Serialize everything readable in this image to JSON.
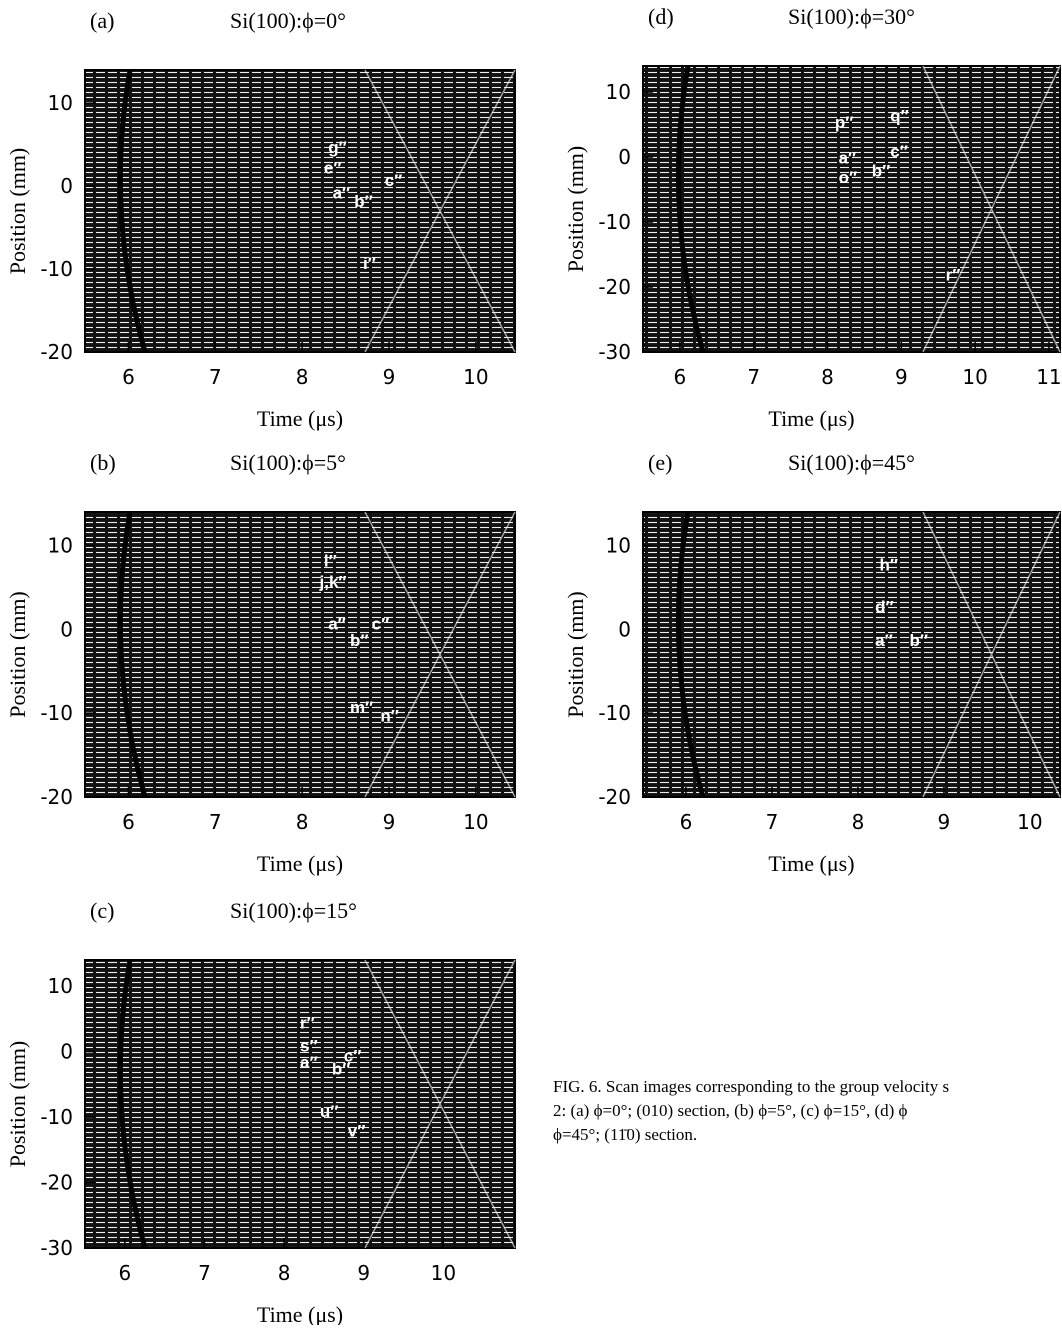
{
  "chart_data": [
    {
      "type": "scan",
      "panel": "(a)",
      "title": "Si(100):ϕ=0°",
      "xlabel": "Time (μs)",
      "ylabel": "Position (mm)",
      "xlim": [
        5.5,
        10.45
      ],
      "xticks": [
        6,
        7,
        8,
        9,
        10
      ],
      "ylim": [
        -20,
        14
      ],
      "yticks": [
        -20,
        -10,
        0,
        10
      ],
      "annotations": [
        {
          "text": "g″",
          "x": 8.3,
          "y": 4
        },
        {
          "text": "e″",
          "x": 8.25,
          "y": 1.5
        },
        {
          "text": "a″",
          "x": 8.35,
          "y": -1.5
        },
        {
          "text": "b″",
          "x": 8.6,
          "y": -2.5
        },
        {
          "text": "c″",
          "x": 8.95,
          "y": 0
        },
        {
          "text": "i″",
          "x": 8.7,
          "y": -10
        }
      ]
    },
    {
      "type": "scan",
      "panel": "(b)",
      "title": "Si(100):ϕ=5°",
      "xlabel": "Time (μs)",
      "ylabel": "Position (mm)",
      "xlim": [
        5.5,
        10.45
      ],
      "xticks": [
        6,
        7,
        8,
        9,
        10
      ],
      "ylim": [
        -20,
        14
      ],
      "yticks": [
        -20,
        -10,
        0,
        10
      ],
      "annotations": [
        {
          "text": "l″",
          "x": 8.25,
          "y": 7.5
        },
        {
          "text": "j,k″",
          "x": 8.2,
          "y": 5
        },
        {
          "text": "a″",
          "x": 8.3,
          "y": 0
        },
        {
          "text": "b″",
          "x": 8.55,
          "y": -2
        },
        {
          "text": "c″",
          "x": 8.8,
          "y": 0
        },
        {
          "text": "m″",
          "x": 8.55,
          "y": -10
        },
        {
          "text": "n″",
          "x": 8.9,
          "y": -11
        }
      ]
    },
    {
      "type": "scan",
      "panel": "(c)",
      "title": "Si(100):ϕ=15°",
      "xlabel": "Time (μs)",
      "ylabel": "Position (mm)",
      "xlim": [
        5.5,
        10.9
      ],
      "xticks": [
        6,
        7,
        8,
        9,
        10
      ],
      "ylim": [
        -30,
        14
      ],
      "yticks": [
        -30,
        -20,
        -10,
        0,
        10
      ],
      "annotations": [
        {
          "text": "r″",
          "x": 8.2,
          "y": 3.5
        },
        {
          "text": "s″",
          "x": 8.2,
          "y": 0
        },
        {
          "text": "a″",
          "x": 8.2,
          "y": -2.5
        },
        {
          "text": "b″",
          "x": 8.6,
          "y": -3.5
        },
        {
          "text": "c″",
          "x": 8.75,
          "y": -1.5
        },
        {
          "text": "u″",
          "x": 8.45,
          "y": -10
        },
        {
          "text": "v″",
          "x": 8.8,
          "y": -13
        }
      ]
    },
    {
      "type": "scan",
      "panel": "(d)",
      "title": "Si(100):ϕ=30°",
      "xlabel": "Time (μs)",
      "ylabel": "Position (mm)",
      "xlim": [
        5.5,
        11.15
      ],
      "xticks": [
        6,
        7,
        8,
        9,
        10,
        11
      ],
      "ylim": [
        -30,
        14
      ],
      "yticks": [
        -30,
        -20,
        -10,
        0,
        10
      ],
      "annotations": [
        {
          "text": "p″",
          "x": 8.1,
          "y": 4.5
        },
        {
          "text": "q″",
          "x": 8.85,
          "y": 5.5
        },
        {
          "text": "a″",
          "x": 8.15,
          "y": -1
        },
        {
          "text": "c″",
          "x": 8.85,
          "y": 0
        },
        {
          "text": "o″",
          "x": 8.15,
          "y": -4
        },
        {
          "text": "b″",
          "x": 8.6,
          "y": -3
        },
        {
          "text": "r″",
          "x": 9.6,
          "y": -19
        }
      ]
    },
    {
      "type": "scan",
      "panel": "(e)",
      "title": "Si(100):ϕ=45°",
      "xlabel": "Time (μs)",
      "ylabel": "Position (mm)",
      "xlim": [
        5.5,
        10.35
      ],
      "xticks": [
        6,
        7,
        8,
        9,
        10
      ],
      "ylim": [
        -20,
        14
      ],
      "yticks": [
        -20,
        -10,
        0,
        10
      ],
      "annotations": [
        {
          "text": "h″",
          "x": 8.25,
          "y": 7
        },
        {
          "text": "d″",
          "x": 8.2,
          "y": 2
        },
        {
          "text": "a″",
          "x": 8.2,
          "y": -2
        },
        {
          "text": "b″",
          "x": 8.6,
          "y": -2
        }
      ]
    }
  ],
  "caption": [
    "FIG. 6. Scan images corresponding to the group velocity s",
    "2: (a) ϕ=0°; (010) section, (b) ϕ=5°, (c) ϕ=15°, (d) ϕ",
    "ϕ=45°; (11̄0) section."
  ]
}
